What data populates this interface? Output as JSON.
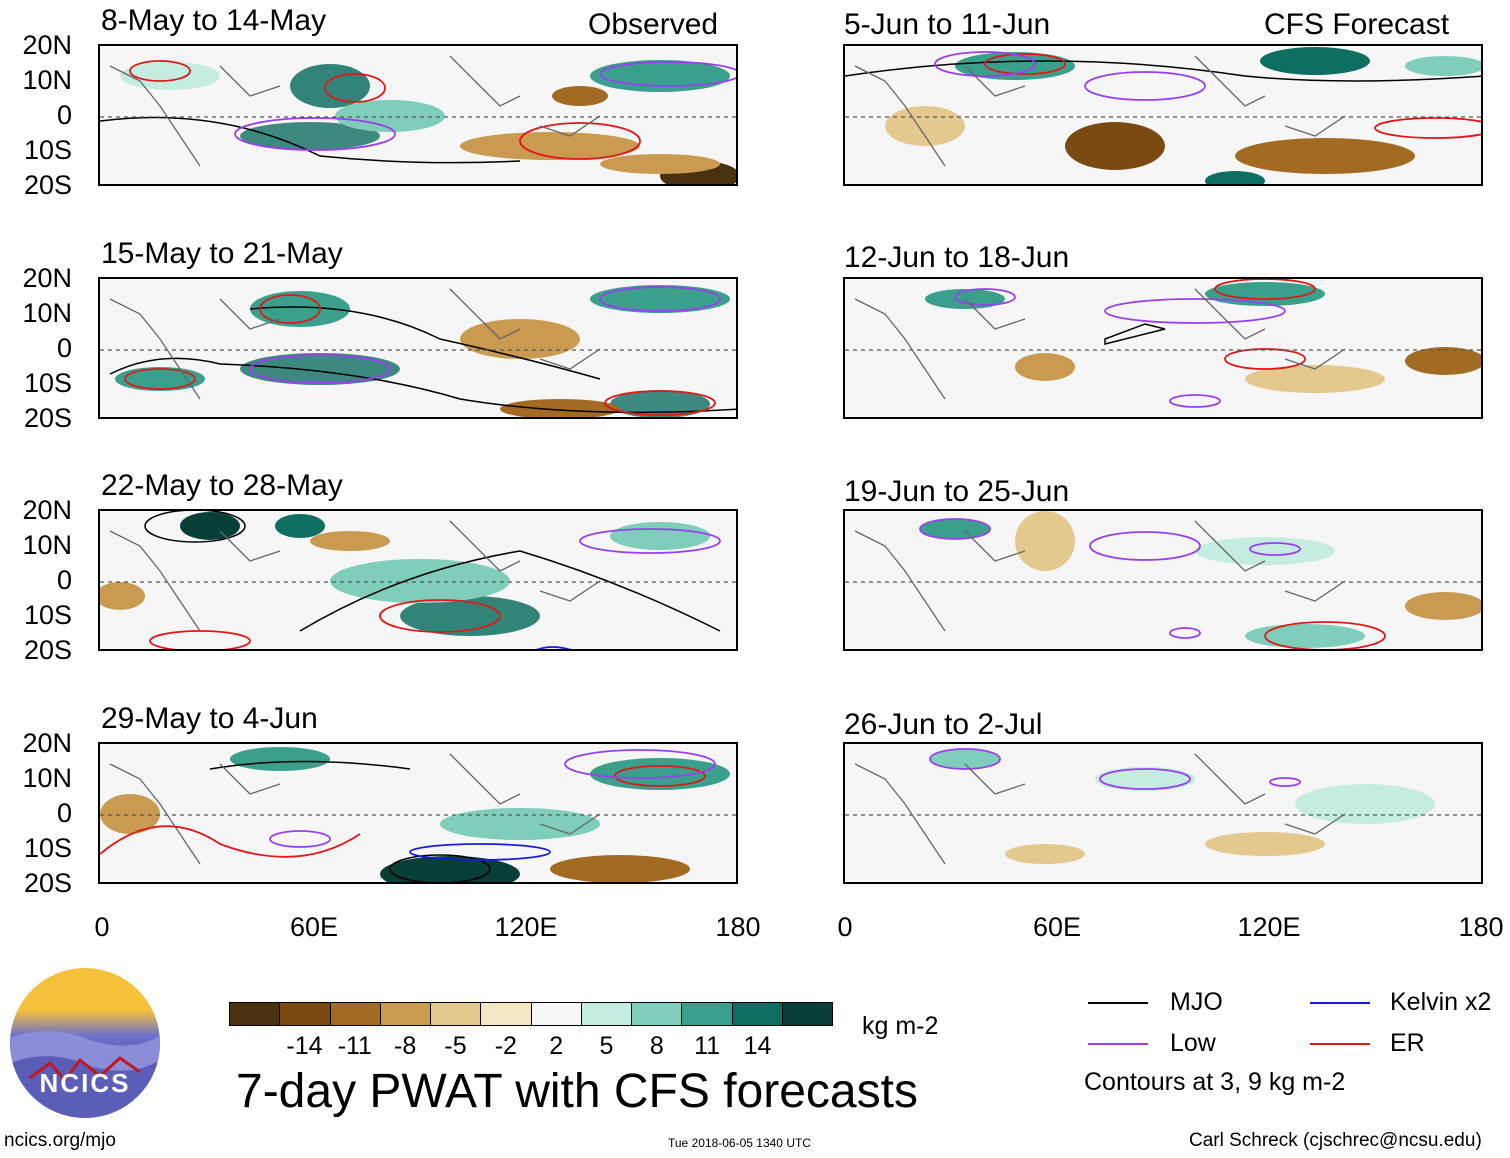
{
  "labels": {
    "observed": "Observed",
    "forecast": "CFS Forecast"
  },
  "lat_ticks": [
    "20N",
    "10N",
    "0",
    "10S",
    "20S"
  ],
  "lon_ticks": [
    "0",
    "60E",
    "120E",
    "180"
  ],
  "panels_left": [
    {
      "title": "8-May to 14-May"
    },
    {
      "title": "15-May to 21-May"
    },
    {
      "title": "22-May to 28-May"
    },
    {
      "title": "29-May to 4-Jun"
    }
  ],
  "panels_right": [
    {
      "title": "5-Jun to 11-Jun"
    },
    {
      "title": "12-Jun to 18-Jun"
    },
    {
      "title": "19-Jun to 25-Jun"
    },
    {
      "title": "26-Jun to 2-Jul"
    }
  ],
  "colorbar": {
    "labels": [
      "-14",
      "-11",
      "-8",
      "-5",
      "-2",
      "2",
      "5",
      "8",
      "11",
      "14"
    ],
    "colors": [
      "#4a3210",
      "#7a4a12",
      "#a36a22",
      "#c99a50",
      "#e4c98e",
      "#f3e7c6",
      "#f8f8f8",
      "#c4ece0",
      "#7fcdbb",
      "#3aa08c",
      "#0f6e62",
      "#083f36"
    ],
    "units": "kg m-2"
  },
  "legend": {
    "items": [
      {
        "label": "MJO",
        "color": "#000000"
      },
      {
        "label": "Kelvin x2",
        "color": "#1a1adc"
      },
      {
        "label": "Low",
        "color": "#9a3ef0"
      },
      {
        "label": "ER",
        "color": "#e01818"
      }
    ],
    "note": "Contours at 3, 9 kg m-2"
  },
  "footer": {
    "main_title": "7-day PWAT with CFS forecasts",
    "site": "ncics.org/mjo",
    "timestamp": "Tue 2018-06-05 1340 UTC",
    "credit": "Carl Schreck (cjschrec@ncsu.edu)",
    "logo_text": "NCICS"
  }
}
